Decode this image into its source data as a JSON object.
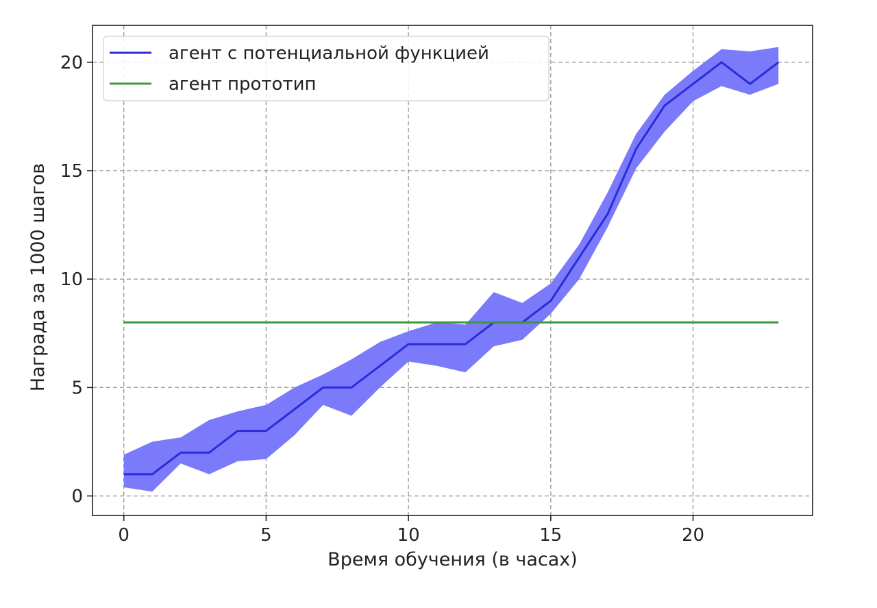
{
  "chart_data": {
    "type": "line",
    "title": "",
    "xlabel": "Время обучения (в часах)",
    "ylabel": "Награда за 1000 шагов",
    "xlim": [
      -1.1,
      24.2
    ],
    "ylim": [
      -0.9,
      21.7
    ],
    "xticks": [
      0,
      5,
      10,
      15,
      20
    ],
    "yticks": [
      0,
      5,
      10,
      15,
      20
    ],
    "grid": true,
    "legend_position": "top-left",
    "x": [
      0,
      1,
      2,
      3,
      4,
      5,
      6,
      7,
      8,
      9,
      10,
      11,
      12,
      13,
      14,
      15,
      16,
      17,
      18,
      19,
      20,
      21,
      22,
      23
    ],
    "series": [
      {
        "name": "агент с потенциальной функцией",
        "color": "#2b2bdc",
        "band_color": "#7a7afa",
        "values": [
          1,
          1,
          2,
          2,
          3,
          3,
          4,
          5,
          5,
          6,
          7,
          7,
          7,
          8,
          8,
          9,
          11,
          13,
          16,
          18,
          19,
          20,
          19,
          20
        ],
        "upper": [
          1.9,
          2.5,
          2.7,
          3.5,
          3.9,
          4.2,
          5.0,
          5.6,
          6.3,
          7.1,
          7.6,
          8.0,
          7.9,
          9.4,
          8.9,
          9.8,
          11.6,
          14.0,
          16.7,
          18.5,
          19.6,
          20.6,
          20.5,
          20.7
        ],
        "lower": [
          0.4,
          0.2,
          1.5,
          1.0,
          1.6,
          1.7,
          2.8,
          4.2,
          3.7,
          5.0,
          6.2,
          6.0,
          5.7,
          6.9,
          7.2,
          8.4,
          10.0,
          12.4,
          15.1,
          16.8,
          18.2,
          18.9,
          18.5,
          19.0
        ]
      },
      {
        "name": "агент прототип",
        "color": "#3a9a3a",
        "values": [
          8,
          8,
          8,
          8,
          8,
          8,
          8,
          8,
          8,
          8,
          8,
          8,
          8,
          8,
          8,
          8,
          8,
          8,
          8,
          8,
          8,
          8,
          8,
          8
        ]
      }
    ]
  }
}
